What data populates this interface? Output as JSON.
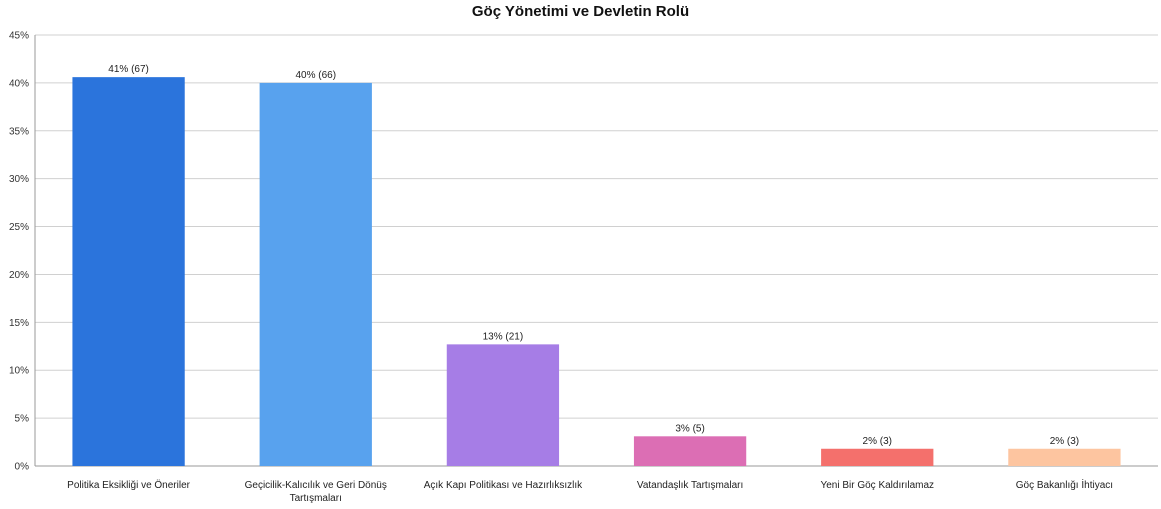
{
  "chart_data": {
    "type": "bar",
    "title": "Göç Yönetimi ve Devletin Rolü",
    "xlabel": "",
    "ylabel": "",
    "ylim": [
      0,
      45
    ],
    "yticks": [
      0,
      5,
      10,
      15,
      20,
      25,
      30,
      35,
      40,
      45
    ],
    "ytick_labels": [
      "0%",
      "5%",
      "10%",
      "15%",
      "20%",
      "25%",
      "30%",
      "35%",
      "40%",
      "45%"
    ],
    "grid": true,
    "legend": "none",
    "categories": [
      [
        "Politika Eksikliği ve Öneriler"
      ],
      [
        "Geçicilik-Kalıcılık ve Geri Dönüş",
        "Tartışmaları"
      ],
      [
        "Açık Kapı Politikası ve Hazırlıksızlık"
      ],
      [
        "Vatandaşlık Tartışmaları"
      ],
      [
        "Yeni Bir Göç Kaldırılamaz"
      ],
      [
        "Göç Bakanlığı İhtiyacı"
      ]
    ],
    "values": [
      40.6,
      40.0,
      12.7,
      3.1,
      1.8,
      1.8
    ],
    "data_labels": [
      "41% (67)",
      "40% (66)",
      "13% (21)",
      "3% (5)",
      "2% (3)",
      "2% (3)"
    ],
    "colors": [
      "#2b74dc",
      "#58a2ee",
      "#a67de6",
      "#dc6eb4",
      "#f4706c",
      "#fdc5a0"
    ]
  }
}
